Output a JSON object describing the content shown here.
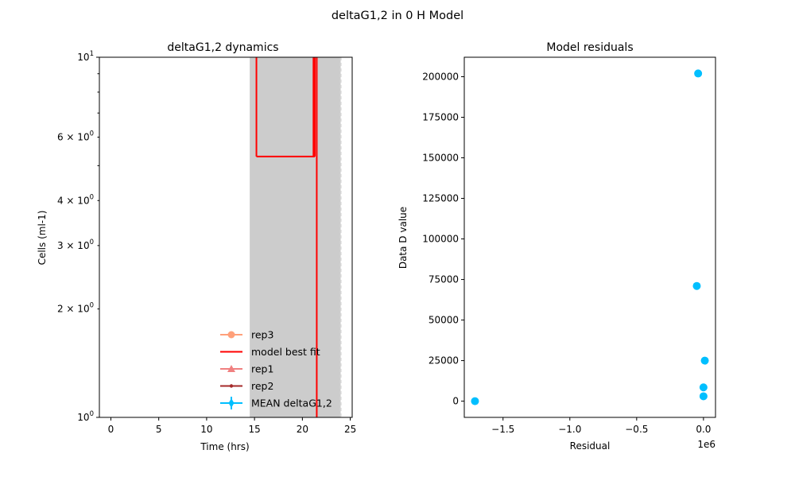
{
  "figure": {
    "title": "deltaG1,2 in 0 H Model"
  },
  "chart_data": [
    {
      "type": "line",
      "title": "deltaG1,2 dynamics",
      "xlabel": "Time (hrs)",
      "ylabel": "Cells (ml-1)",
      "xlim": [
        -1.2,
        25.2
      ],
      "ylim": [
        1,
        10
      ],
      "yscale": "log",
      "xticks": [
        {
          "value": 0,
          "label": "0"
        },
        {
          "value": 5,
          "label": "5"
        },
        {
          "value": 10,
          "label": "10"
        },
        {
          "value": 15,
          "label": "15"
        },
        {
          "value": 20,
          "label": "20"
        },
        {
          "value": 25,
          "label": "25"
        }
      ],
      "yticks": [
        {
          "value": 1,
          "base": "10",
          "exp": "0"
        },
        {
          "value": 10,
          "base": "10",
          "exp": "1"
        }
      ],
      "yminor_ticks": [
        {
          "value": 2,
          "base": "2 × 10",
          "exp": "0"
        },
        {
          "value": 3,
          "base": "3 × 10",
          "exp": "0"
        },
        {
          "value": 4,
          "base": "4 × 10",
          "exp": "0"
        },
        {
          "value": 5,
          "base": "",
          "exp": ""
        },
        {
          "value": 6,
          "base": "6 × 10",
          "exp": "0"
        },
        {
          "value": 7,
          "base": "",
          "exp": ""
        },
        {
          "value": 8,
          "base": "",
          "exp": ""
        },
        {
          "value": 9,
          "base": "",
          "exp": ""
        }
      ],
      "shaded_band": {
        "x0": 14.5,
        "x1": 24.0,
        "color": "#cccccc"
      },
      "model_best_fit": {
        "color": "#ff0000",
        "segments": [
          {
            "x": [
              15.2,
              15.2
            ],
            "y": [
              10,
              5.3
            ]
          },
          {
            "x": [
              15.2,
              21.3
            ],
            "y": [
              5.3,
              5.3
            ]
          },
          {
            "x": [
              21.3,
              21.3
            ],
            "y": [
              5.3,
              10
            ]
          },
          {
            "x": [
              21.5,
              21.5
            ],
            "y": [
              10,
              1
            ]
          }
        ]
      },
      "legend": {
        "position": "lower-right",
        "entries": [
          {
            "label": "rep3",
            "color": "#ffa07a",
            "marker": "circle"
          },
          {
            "label": " model best fit",
            "color": "#ff0000",
            "marker": "none"
          },
          {
            "label": "rep1",
            "color": "#f08080",
            "marker": "triangle"
          },
          {
            "label": "rep2",
            "color": "#a52a2a",
            "marker": "dot"
          },
          {
            "label": "MEAN deltaG1,2",
            "color": "#00bfff",
            "marker": "errorbar"
          }
        ]
      }
    },
    {
      "type": "scatter",
      "title": "Model residuals",
      "xlabel": "Residual",
      "ylabel": "Data D value",
      "offset_text": "1e6",
      "xlim": [
        -1.79,
        0.09
      ],
      "ylim": [
        -10000,
        212000
      ],
      "xticks": [
        {
          "value": -1.5,
          "label": "−1.5"
        },
        {
          "value": -1.0,
          "label": "−1.0"
        },
        {
          "value": -0.5,
          "label": "−0.5"
        },
        {
          "value": 0.0,
          "label": "0.0"
        }
      ],
      "yticks": [
        {
          "value": 0,
          "label": "0"
        },
        {
          "value": 25000,
          "label": "25000"
        },
        {
          "value": 50000,
          "label": "50000"
        },
        {
          "value": 75000,
          "label": "75000"
        },
        {
          "value": 100000,
          "label": "100000"
        },
        {
          "value": 125000,
          "label": "125000"
        },
        {
          "value": 150000,
          "label": "150000"
        },
        {
          "value": 175000,
          "label": "175000"
        },
        {
          "value": 200000,
          "label": "200000"
        }
      ],
      "color": "#00bfff",
      "points": [
        {
          "x": -0.04,
          "y": 202000
        },
        {
          "x": -0.05,
          "y": 71000
        },
        {
          "x": 0.01,
          "y": 25000
        },
        {
          "x": 0.0,
          "y": 8500
        },
        {
          "x": 0.0,
          "y": 3000
        },
        {
          "x": -1.71,
          "y": 0
        }
      ]
    }
  ]
}
